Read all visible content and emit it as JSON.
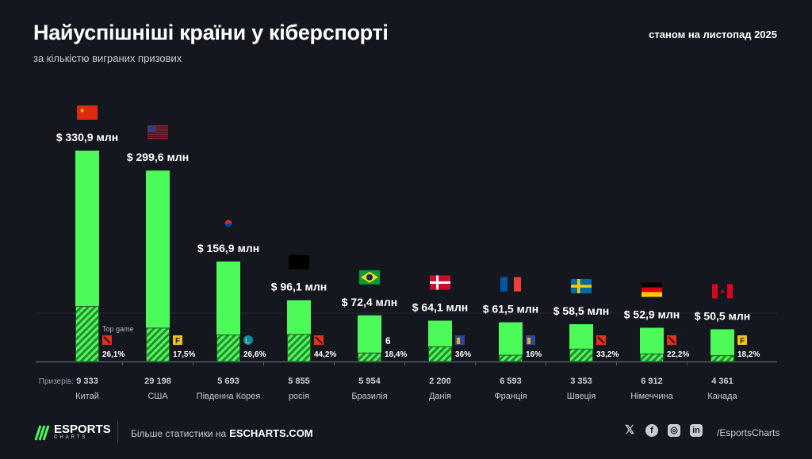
{
  "header": {
    "title": "Найуспішніші країни у кіберспорті",
    "subtitle": "за кількістю виграних призових",
    "date": "станом на листопад 2025"
  },
  "chart_data": {
    "type": "bar",
    "title": "Найуспішніші країни у кіберспорті",
    "subtitle": "за кількістю виграних призових",
    "unit_prefix": "$",
    "unit_suffix": "млн",
    "categories": [
      "Китай",
      "США",
      "Південна Корея",
      "росія",
      "Бразилія",
      "Данія",
      "Франція",
      "Швеція",
      "Німеччина",
      "Канада"
    ],
    "values": [
      330.9,
      299.6,
      156.9,
      96.1,
      72.4,
      64.1,
      61.5,
      58.5,
      52.9,
      50.5
    ],
    "value_labels": [
      "$ 330,9 млн",
      "$ 299,6 млн",
      "$ 156,9 млн",
      "$ 96,1 млн",
      "$ 72,4 млн",
      "$ 64,1 млн",
      "$ 61,5 млн",
      "$ 58,5 млн",
      "$ 52,9 млн",
      "$ 50,5 млн"
    ],
    "top_game_label": "Top game",
    "top_game": [
      "dota2",
      "fortnite",
      "league-of-legends",
      "dota2",
      "rainbow-six",
      "counter-strike",
      "counter-strike",
      "dota2",
      "dota2",
      "fortnite"
    ],
    "top_game_share": [
      26.1,
      17.5,
      26.6,
      44.2,
      18.4,
      36,
      16,
      33.2,
      22.2,
      18.2
    ],
    "top_game_share_labels": [
      "26,1%",
      "17,5%",
      "26,6%",
      "44,2%",
      "18,4%",
      "36%",
      "16%",
      "33,2%",
      "22,2%",
      "18,2%"
    ],
    "prize_winners_label": "Призерів:",
    "prize_winners": [
      "9 333",
      "29 198",
      "5 693",
      "5 855",
      "5 954",
      "2 200",
      "6 593",
      "3 353",
      "6 912",
      "4 361"
    ],
    "flags": [
      "china",
      "usa",
      "south-korea",
      "censored",
      "brazil",
      "denmark",
      "france",
      "sweden",
      "germany",
      "canada"
    ],
    "ylim": [
      0,
      330.9
    ],
    "grid": false,
    "colors": {
      "bar": "#4cfa5a",
      "hatch": "#2f9e37",
      "background": "#15171f"
    }
  },
  "footer": {
    "logo": "ESPORTS CHARTS",
    "more_text": "Більше статистики на",
    "site": "ESCHARTS.COM",
    "handle": "/EsportsCharts",
    "socials": [
      "x",
      "facebook",
      "instagram",
      "linkedin"
    ]
  }
}
